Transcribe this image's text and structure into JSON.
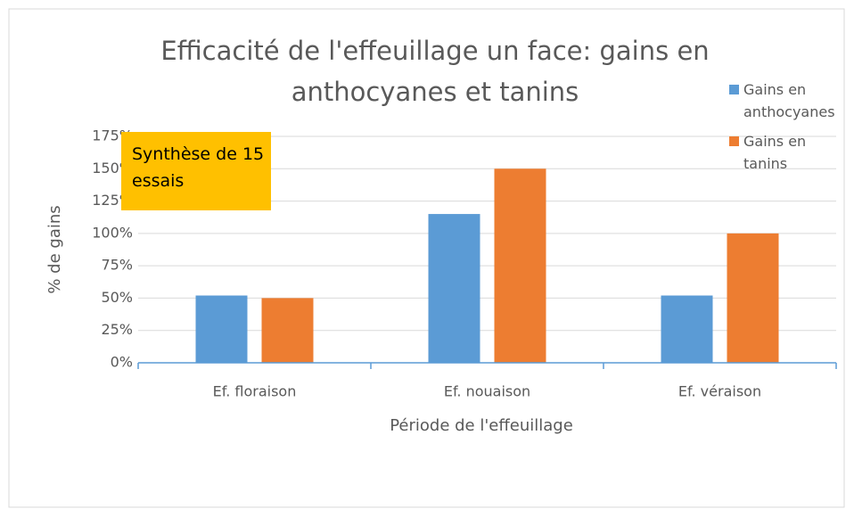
{
  "chart_data": {
    "type": "bar",
    "title": "Efficacité de l'effeuillage un face: gains en anthocyanes et tanins",
    "annotation": "Synthèse de 15 essais",
    "xlabel": "Période de l'effeuillage",
    "ylabel": "% de gains",
    "categories": [
      "Ef. floraison",
      "Ef. nouaison",
      "Ef. véraison"
    ],
    "series": [
      {
        "name": "Gains en anthocyanes",
        "color": "#5b9bd5",
        "values": [
          52,
          115,
          52
        ]
      },
      {
        "name": "Gains en tanins",
        "color": "#ed7d31",
        "values": [
          50,
          150,
          100
        ]
      }
    ],
    "ylim": [
      0,
      175
    ],
    "yticks": [
      {
        "value": 0,
        "label": "0%"
      },
      {
        "value": 25,
        "label": "25%"
      },
      {
        "value": 50,
        "label": "50%"
      },
      {
        "value": 75,
        "label": "75%"
      },
      {
        "value": 100,
        "label": "100%"
      },
      {
        "value": 125,
        "label": "125%"
      },
      {
        "value": 150,
        "label": "150%"
      },
      {
        "value": 175,
        "label": "175%"
      }
    ],
    "grid": true,
    "legend": "top-right"
  }
}
